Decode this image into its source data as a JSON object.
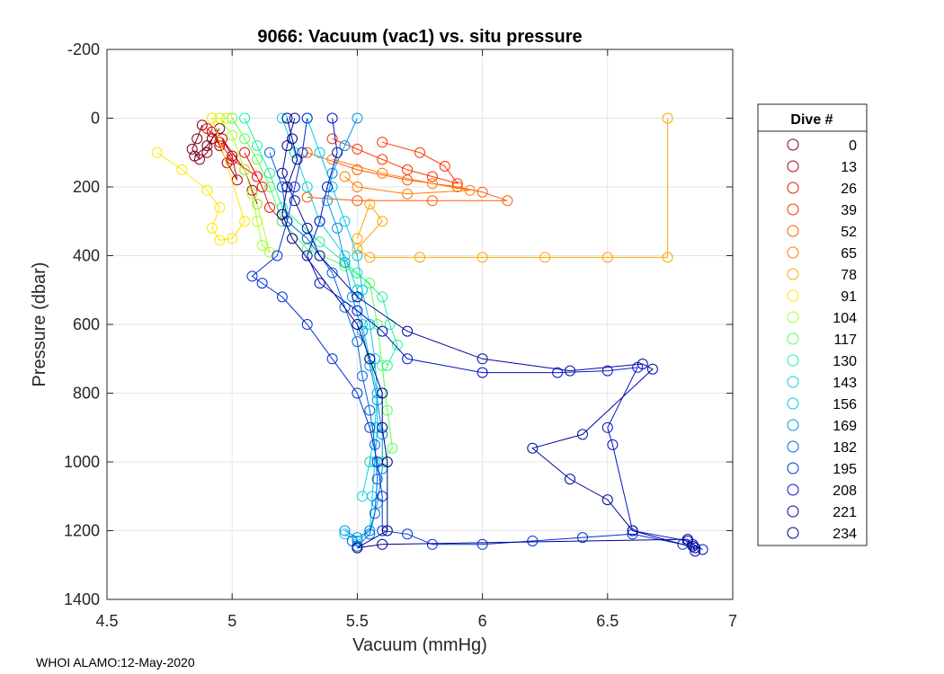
{
  "chart_data": {
    "type": "line",
    "title": "9066: Vacuum (vac1) vs. situ pressure",
    "xlabel": "Vacuum (mmHg)",
    "ylabel": "Pressure (dbar)",
    "xlim": [
      4.5,
      7
    ],
    "ylim": [
      1400,
      -200
    ],
    "y_reversed": true,
    "grid": true,
    "marker": "open-circle",
    "x_ticks": [
      4.5,
      5,
      5.5,
      6,
      6.5,
      7
    ],
    "x_tick_labels": [
      "4.5",
      "5",
      "5.5",
      "6",
      "6.5",
      "7"
    ],
    "y_ticks": [
      -200,
      0,
      200,
      400,
      600,
      800,
      1000,
      1200,
      1400
    ],
    "y_tick_labels": [
      "-200",
      "0",
      "200",
      "400",
      "600",
      "800",
      "1000",
      "1200",
      "1400"
    ],
    "legend": {
      "title": "Dive #",
      "placement": "outside-right",
      "entries": [
        {
          "label": "0",
          "color": "#80001a"
        },
        {
          "label": "13",
          "color": "#b3000b"
        },
        {
          "label": "26",
          "color": "#e6140a"
        },
        {
          "label": "39",
          "color": "#ff3200"
        },
        {
          "label": "52",
          "color": "#ff5a00"
        },
        {
          "label": "65",
          "color": "#ff7d00"
        },
        {
          "label": "78",
          "color": "#ffa500"
        },
        {
          "label": "91",
          "color": "#ffe600"
        },
        {
          "label": "104",
          "color": "#aaff2a"
        },
        {
          "label": "117",
          "color": "#55ff55"
        },
        {
          "label": "130",
          "color": "#20f0a0"
        },
        {
          "label": "143",
          "color": "#10d2d2"
        },
        {
          "label": "156",
          "color": "#00c8f0"
        },
        {
          "label": "169",
          "color": "#0096e6"
        },
        {
          "label": "182",
          "color": "#0064dc"
        },
        {
          "label": "195",
          "color": "#0032d2"
        },
        {
          "label": "208",
          "color": "#0014c8"
        },
        {
          "label": "221",
          "color": "#000aa0"
        },
        {
          "label": "234",
          "color": "#00008c"
        }
      ]
    },
    "series": [
      {
        "name": "0",
        "color": "#80001a",
        "points": [
          [
            4.88,
            20
          ],
          [
            4.86,
            60
          ],
          [
            4.84,
            90
          ],
          [
            4.87,
            120
          ],
          [
            4.9,
            100
          ],
          [
            4.92,
            60
          ],
          [
            4.95,
            30
          ],
          [
            4.9,
            80
          ],
          [
            4.85,
            110
          ]
        ]
      },
      {
        "name": "13",
        "color": "#b3000b",
        "points": [
          [
            4.92,
            40
          ],
          [
            4.95,
            80
          ],
          [
            4.98,
            130
          ],
          [
            5.02,
            180
          ],
          [
            5.0,
            110
          ],
          [
            4.96,
            60
          ],
          [
            5.05,
            150
          ],
          [
            5.08,
            210
          ],
          [
            5.1,
            250
          ]
        ]
      },
      {
        "name": "26",
        "color": "#e6140a",
        "points": [
          [
            4.9,
            30
          ],
          [
            4.95,
            70
          ],
          [
            5.0,
            120
          ],
          [
            5.1,
            170
          ],
          [
            5.05,
            100
          ],
          [
            5.12,
            200
          ],
          [
            5.15,
            260
          ],
          [
            5.2,
            300
          ]
        ]
      },
      {
        "name": "39",
        "color": "#ff3200",
        "points": [
          [
            5.4,
            60
          ],
          [
            5.5,
            90
          ],
          [
            5.6,
            120
          ],
          [
            5.7,
            150
          ],
          [
            5.8,
            170
          ],
          [
            5.9,
            190
          ],
          [
            5.85,
            140
          ],
          [
            5.75,
            100
          ],
          [
            5.6,
            70
          ]
        ]
      },
      {
        "name": "52",
        "color": "#ff5a00",
        "points": [
          [
            5.3,
            100
          ],
          [
            5.5,
            150
          ],
          [
            5.7,
            180
          ],
          [
            5.9,
            200
          ],
          [
            6.0,
            215
          ],
          [
            6.1,
            240
          ],
          [
            5.8,
            240
          ],
          [
            5.5,
            240
          ],
          [
            5.3,
            230
          ]
        ]
      },
      {
        "name": "65",
        "color": "#ff7d00",
        "points": [
          [
            5.4,
            120
          ],
          [
            5.6,
            160
          ],
          [
            5.8,
            190
          ],
          [
            5.95,
            210
          ],
          [
            5.7,
            220
          ],
          [
            5.5,
            200
          ],
          [
            5.45,
            170
          ]
        ]
      },
      {
        "name": "78",
        "color": "#ffa500",
        "points": [
          [
            6.74,
            0
          ],
          [
            6.74,
            405
          ],
          [
            6.5,
            405
          ],
          [
            6.25,
            405
          ],
          [
            6.0,
            405
          ],
          [
            5.75,
            405
          ],
          [
            5.55,
            405
          ],
          [
            5.5,
            380
          ],
          [
            5.6,
            300
          ],
          [
            5.55,
            250
          ],
          [
            5.5,
            350
          ]
        ]
      },
      {
        "name": "91",
        "color": "#ffe600",
        "points": [
          [
            4.7,
            100
          ],
          [
            4.8,
            150
          ],
          [
            4.9,
            210
          ],
          [
            4.95,
            260
          ],
          [
            4.92,
            320
          ],
          [
            4.95,
            355
          ],
          [
            5.0,
            350
          ],
          [
            5.05,
            300
          ],
          [
            4.92,
            0
          ],
          [
            4.98,
            0
          ]
        ]
      },
      {
        "name": "104",
        "color": "#aaff2a",
        "points": [
          [
            4.95,
            0
          ],
          [
            5.0,
            50
          ],
          [
            5.05,
            150
          ],
          [
            5.08,
            220
          ],
          [
            5.1,
            300
          ],
          [
            5.12,
            370
          ],
          [
            5.15,
            390
          ],
          [
            5.1,
            250
          ]
        ]
      },
      {
        "name": "117",
        "color": "#55ff55",
        "points": [
          [
            5.0,
            0
          ],
          [
            5.05,
            60
          ],
          [
            5.1,
            120
          ],
          [
            5.15,
            200
          ],
          [
            5.2,
            300
          ],
          [
            5.3,
            380
          ],
          [
            5.45,
            430
          ],
          [
            5.55,
            480
          ],
          [
            5.58,
            600
          ],
          [
            5.6,
            720
          ],
          [
            5.62,
            850
          ],
          [
            5.64,
            960
          ],
          [
            5.6,
            1000
          ]
        ]
      },
      {
        "name": "130",
        "color": "#20f0a0",
        "points": [
          [
            5.05,
            0
          ],
          [
            5.1,
            80
          ],
          [
            5.15,
            160
          ],
          [
            5.2,
            260
          ],
          [
            5.35,
            360
          ],
          [
            5.5,
            450
          ],
          [
            5.6,
            520
          ],
          [
            5.63,
            600
          ],
          [
            5.66,
            660
          ],
          [
            5.62,
            720
          ]
        ]
      },
      {
        "name": "143",
        "color": "#10d2d2",
        "points": [
          [
            5.2,
            0
          ],
          [
            5.25,
            100
          ],
          [
            5.3,
            200
          ],
          [
            5.35,
            300
          ],
          [
            5.45,
            400
          ],
          [
            5.5,
            500
          ],
          [
            5.52,
            600
          ],
          [
            5.55,
            700
          ],
          [
            5.58,
            800
          ],
          [
            5.57,
            900
          ],
          [
            5.55,
            1000
          ],
          [
            5.52,
            1100
          ]
        ]
      },
      {
        "name": "156",
        "color": "#00c8f0",
        "points": [
          [
            5.3,
            0
          ],
          [
            5.35,
            100
          ],
          [
            5.4,
            200
          ],
          [
            5.45,
            300
          ],
          [
            5.5,
            400
          ],
          [
            5.52,
            500
          ],
          [
            5.55,
            600
          ],
          [
            5.57,
            700
          ],
          [
            5.58,
            800
          ],
          [
            5.58,
            900
          ],
          [
            5.57,
            1000
          ],
          [
            5.56,
            1100
          ],
          [
            5.55,
            1200
          ],
          [
            5.5,
            1230
          ],
          [
            5.45,
            1210
          ]
        ]
      },
      {
        "name": "169",
        "color": "#0096e6",
        "points": [
          [
            5.5,
            0
          ],
          [
            5.45,
            80
          ],
          [
            5.4,
            160
          ],
          [
            5.38,
            240
          ],
          [
            5.42,
            320
          ],
          [
            5.45,
            420
          ],
          [
            5.48,
            520
          ],
          [
            5.52,
            620
          ],
          [
            5.55,
            720
          ],
          [
            5.58,
            820
          ],
          [
            5.6,
            920
          ],
          [
            5.6,
            1020
          ],
          [
            5.58,
            1120
          ],
          [
            5.55,
            1200
          ],
          [
            5.5,
            1220
          ],
          [
            5.45,
            1200
          ]
        ]
      },
      {
        "name": "182",
        "color": "#0064dc",
        "points": [
          [
            5.15,
            100
          ],
          [
            5.2,
            200
          ],
          [
            5.22,
            300
          ],
          [
            5.3,
            350
          ],
          [
            5.4,
            450
          ],
          [
            5.45,
            550
          ],
          [
            5.5,
            650
          ],
          [
            5.52,
            750
          ],
          [
            5.55,
            850
          ],
          [
            5.57,
            950
          ],
          [
            5.58,
            1050
          ],
          [
            5.57,
            1150
          ],
          [
            5.55,
            1210
          ],
          [
            5.5,
            1245
          ],
          [
            5.48,
            1230
          ]
        ]
      },
      {
        "name": "195",
        "color": "#0032d2",
        "points": [
          [
            5.3,
            0
          ],
          [
            5.28,
            100
          ],
          [
            5.25,
            200
          ],
          [
            5.22,
            300
          ],
          [
            5.18,
            400
          ],
          [
            5.08,
            460
          ],
          [
            5.12,
            480
          ],
          [
            5.2,
            520
          ],
          [
            5.3,
            600
          ],
          [
            5.4,
            700
          ],
          [
            5.5,
            800
          ],
          [
            5.55,
            900
          ],
          [
            5.58,
            1000
          ],
          [
            5.6,
            1100
          ],
          [
            5.6,
            1200
          ],
          [
            5.7,
            1210
          ],
          [
            5.8,
            1240
          ],
          [
            6.0,
            1240
          ],
          [
            6.2,
            1230
          ],
          [
            6.4,
            1220
          ],
          [
            6.6,
            1210
          ],
          [
            6.8,
            1240
          ]
        ]
      },
      {
        "name": "208",
        "color": "#0014c8",
        "points": [
          [
            5.4,
            0
          ],
          [
            5.42,
            100
          ],
          [
            5.38,
            200
          ],
          [
            5.35,
            300
          ],
          [
            5.3,
            400
          ],
          [
            5.35,
            480
          ],
          [
            5.5,
            560
          ],
          [
            5.6,
            620
          ],
          [
            5.7,
            700
          ],
          [
            6.0,
            740
          ],
          [
            6.3,
            740
          ],
          [
            6.5,
            735
          ],
          [
            6.62,
            725
          ],
          [
            6.5,
            900
          ],
          [
            6.52,
            950
          ],
          [
            6.6,
            1200
          ],
          [
            6.82,
            1230
          ],
          [
            6.88,
            1255
          ],
          [
            6.84,
            1240
          ]
        ]
      },
      {
        "name": "221",
        "color": "#000aa0",
        "points": [
          [
            5.25,
            0
          ],
          [
            5.22,
            80
          ],
          [
            5.2,
            160
          ],
          [
            5.25,
            240
          ],
          [
            5.3,
            320
          ],
          [
            5.35,
            400
          ],
          [
            5.5,
            520
          ],
          [
            5.7,
            620
          ],
          [
            6.0,
            700
          ],
          [
            6.35,
            735
          ],
          [
            6.64,
            715
          ],
          [
            6.68,
            730
          ],
          [
            6.4,
            920
          ],
          [
            6.2,
            960
          ],
          [
            6.35,
            1050
          ],
          [
            6.5,
            1110
          ],
          [
            6.6,
            1200
          ],
          [
            6.85,
            1250
          ]
        ]
      },
      {
        "name": "234",
        "color": "#00008c",
        "points": [
          [
            5.22,
            0
          ],
          [
            5.24,
            60
          ],
          [
            5.26,
            120
          ],
          [
            5.22,
            200
          ],
          [
            5.2,
            280
          ],
          [
            5.24,
            350
          ],
          [
            5.5,
            600
          ],
          [
            5.55,
            700
          ],
          [
            5.6,
            800
          ],
          [
            5.6,
            900
          ],
          [
            5.62,
            1000
          ],
          [
            5.62,
            1200
          ],
          [
            5.5,
            1250
          ],
          [
            5.6,
            1240
          ],
          [
            6.82,
            1225
          ],
          [
            6.84,
            1245
          ],
          [
            6.85,
            1260
          ]
        ]
      }
    ]
  },
  "footer": {
    "text": "WHOI ALAMO:12-May-2020"
  }
}
